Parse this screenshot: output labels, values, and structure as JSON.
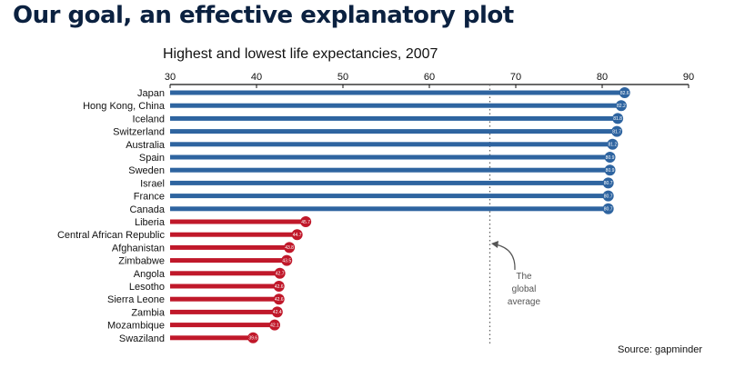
{
  "slide_title": "Our goal, an effective explanatory plot",
  "source_text": "Source: gapminder",
  "colors": {
    "high": "#2e64a0",
    "low": "#c0182a",
    "axis": "#111111",
    "reference": "#666666"
  },
  "chart_data": {
    "type": "bar",
    "title": "Highest and lowest life expectancies, 2007",
    "xlabel": "",
    "ylabel": "",
    "xlim": [
      30,
      90
    ],
    "xticks": [
      30,
      40,
      50,
      60,
      70,
      80,
      90
    ],
    "grid": false,
    "orientation": "horizontal",
    "categories": [
      "Japan",
      "Hong Kong, China",
      "Iceland",
      "Switzerland",
      "Australia",
      "Spain",
      "Sweden",
      "Israel",
      "France",
      "Canada",
      "Liberia",
      "Central African Republic",
      "Afghanistan",
      "Zimbabwe",
      "Angola",
      "Lesotho",
      "Sierra Leone",
      "Zambia",
      "Mozambique",
      "Swaziland"
    ],
    "values": [
      82.6,
      82.2,
      81.8,
      81.7,
      81.2,
      80.9,
      80.9,
      80.7,
      80.7,
      80.7,
      45.7,
      44.7,
      43.8,
      43.5,
      42.7,
      42.6,
      42.6,
      42.4,
      42.1,
      39.6
    ],
    "value_labels": [
      "82.6",
      "82.2",
      "81.8",
      "81.7",
      "81.2",
      "80.9",
      "80.9",
      "80.7",
      "80.7",
      "80.7",
      "45.7",
      "44.7",
      "43.8",
      "43.5",
      "42.7",
      "42.6",
      "42.6",
      "42.4",
      "42.1",
      "39.6"
    ],
    "groups": [
      "high",
      "high",
      "high",
      "high",
      "high",
      "high",
      "high",
      "high",
      "high",
      "high",
      "low",
      "low",
      "low",
      "low",
      "low",
      "low",
      "low",
      "low",
      "low",
      "low"
    ],
    "reference_line": {
      "value": 67,
      "annotation": [
        "The",
        "global",
        "average"
      ]
    }
  }
}
